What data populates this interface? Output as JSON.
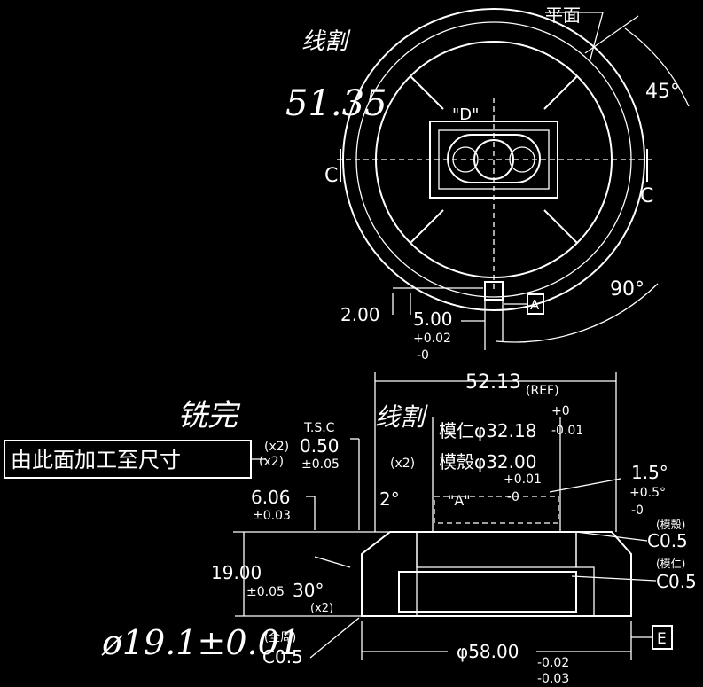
{
  "colors": {
    "background": "#000000",
    "ink": "#ffffff"
  },
  "top_view": {
    "flat_label": "平面",
    "angle_45": "45°",
    "angle_90": "90°",
    "view_D": "\"D\"",
    "section_left": "C",
    "section_right": "C",
    "datum_A": "A",
    "dim_2": "2.00",
    "dim_5": "5.00",
    "dim_5_plus": "+0.02",
    "dim_5_minus": "-0",
    "hand_note": "线割",
    "hand_number": "51.35"
  },
  "section_view": {
    "ref_dim": "52.13",
    "ref_tag": "(REF)",
    "core_label": "模仁φ32.18",
    "core_plus": "+0",
    "core_minus": "-0.01",
    "cavity_label": "模殼φ32.00",
    "cavity_plus": "+0.01",
    "cavity_minus": "-0",
    "detail_A": "\"A\"",
    "tsc": "T.S.C",
    "x2_a": "(x2)",
    "dim_050": "0.50",
    "dim_050_tol": "±0.05",
    "x2_b": "(x2)",
    "x2_c": "(x2)",
    "dim_606": "6.06",
    "dim_606_tol": "±0.03",
    "angle_2": "2°",
    "angle_15": "1.5°",
    "angle_15_plus": "+0.5°",
    "angle_15_minus": "-0",
    "dim_19": "19.00",
    "dim_19_tol": "±0.05",
    "angle_30": "30°",
    "x2_d": "(x2)",
    "chamfer_cavity_tag": "(模殼)",
    "chamfer_cavity": "C0.5",
    "chamfer_core_tag": "(模仁)",
    "chamfer_core": "C0.5",
    "all_round_tag": "(全周)",
    "chamfer_all": "C0.5",
    "dia_58": "φ58.00",
    "dia_58_plus": "-0.02",
    "dia_58_minus": "-0.03",
    "datum_E": "E",
    "boxed_note": "由此面加工至尺寸",
    "hand_done": "铣完",
    "hand_cut": "线割",
    "hand_dim": "ø19.1±0.01"
  }
}
